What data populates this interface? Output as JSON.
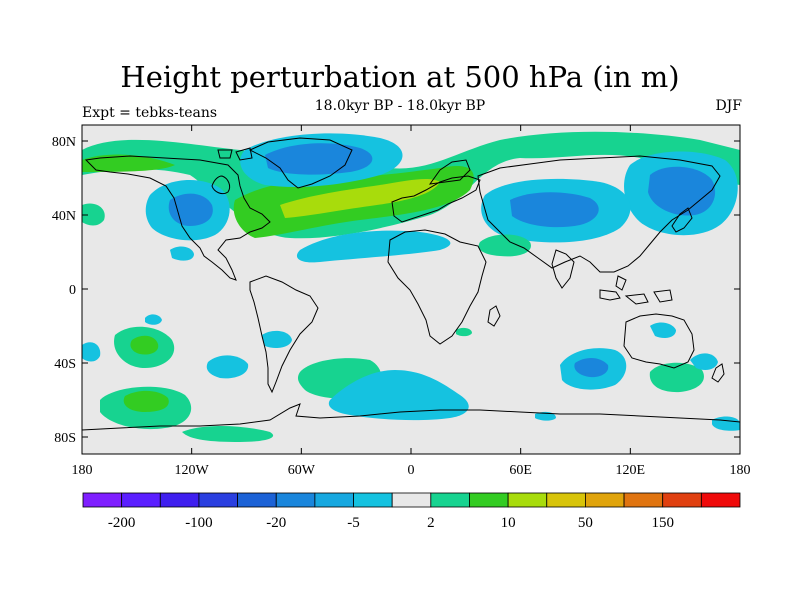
{
  "title": "Height perturbation at 500 hPa (in m)",
  "subtitle": "18.0kyr BP - 18.0kyr BP",
  "left_label": "Expt = tebks-teans",
  "right_label": "DJF",
  "map": {
    "projection": "cylindrical-equidistant",
    "background_color": "#e8e8e8",
    "lat_ticks": [
      "80N",
      "40N",
      "0",
      "40S",
      "80S"
    ],
    "lon_ticks": [
      "180",
      "120W",
      "60W",
      "0",
      "60E",
      "120E",
      "180"
    ]
  },
  "colorbar": {
    "colors": [
      "#7f1fff",
      "#5b1fff",
      "#3f1fef",
      "#2a3fe0",
      "#1c62d6",
      "#1a86dc",
      "#17a8e0",
      "#15c2e0",
      "#e8e8e8",
      "#17d390",
      "#33cc22",
      "#a8dc0c",
      "#d8c40a",
      "#e0a40c",
      "#e07410",
      "#e04010",
      "#ef0a0a"
    ],
    "labels": [
      "-200",
      "-100",
      "-20",
      "-5",
      "2",
      "10",
      "50",
      "150"
    ]
  }
}
